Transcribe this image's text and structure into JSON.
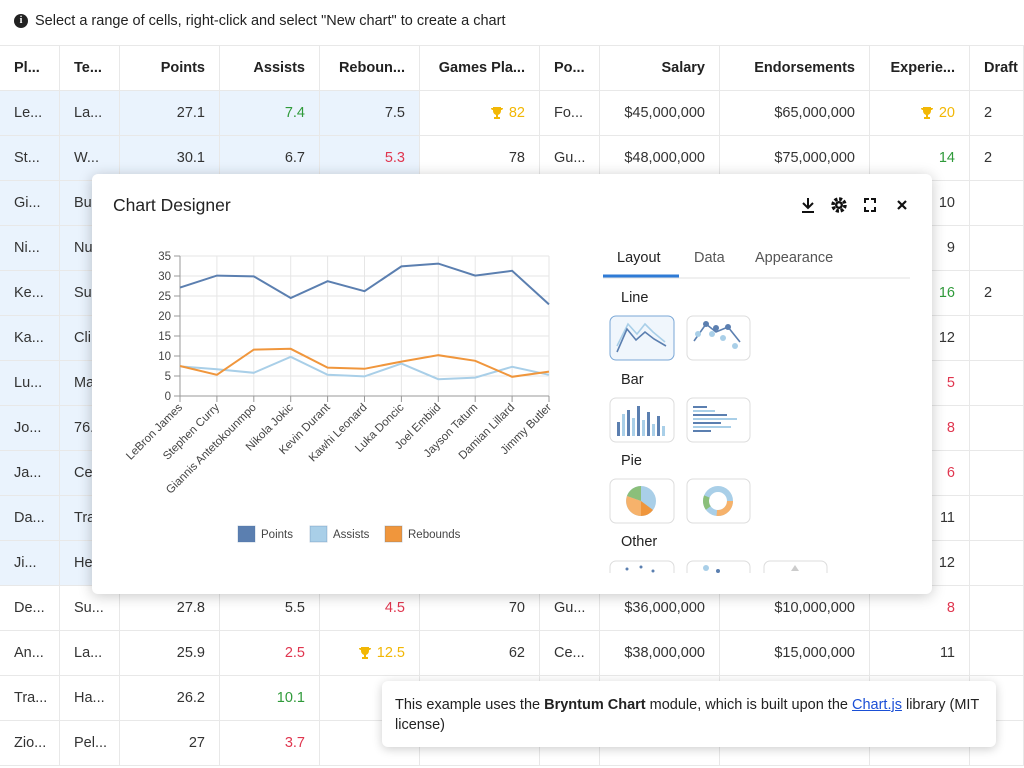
{
  "info_bar": {
    "text": "Select a range of cells, right-click and select \"New chart\" to create a chart"
  },
  "grid": {
    "columns": [
      {
        "title": "Pl...",
        "align": "left"
      },
      {
        "title": "Te...",
        "align": "left"
      },
      {
        "title": "Points",
        "align": "right"
      },
      {
        "title": "Assists",
        "align": "right"
      },
      {
        "title": "Reboun...",
        "align": "right"
      },
      {
        "title": "Games Pla...",
        "align": "right"
      },
      {
        "title": "Po...",
        "align": "left"
      },
      {
        "title": "Salary",
        "align": "right"
      },
      {
        "title": "Endorsements",
        "align": "right"
      },
      {
        "title": "Experie...",
        "align": "right"
      },
      {
        "title": "Draft",
        "align": "left"
      }
    ],
    "rows": [
      [
        "Le...",
        "La...",
        "27.1",
        {
          "text": "7.4",
          "color": "green"
        },
        "7.5",
        {
          "text": "82",
          "color": "gold",
          "icon": "trophy"
        },
        "Fo...",
        "$45,000,000",
        "$65,000,000",
        {
          "text": "20",
          "color": "gold",
          "icon": "trophy"
        },
        "2"
      ],
      [
        "St...",
        "W...",
        "30.1",
        "6.7",
        {
          "text": "5.3",
          "color": "red"
        },
        "78",
        "Gu...",
        "$48,000,000",
        "$75,000,000",
        {
          "text": "14",
          "color": "green"
        },
        "2"
      ],
      [
        "Gi...",
        "Bu...",
        null,
        null,
        null,
        null,
        null,
        null,
        null,
        "10",
        null
      ],
      [
        "Ni...",
        "Nu...",
        null,
        null,
        null,
        null,
        null,
        null,
        null,
        "9",
        null
      ],
      [
        "Ke...",
        "Su...",
        null,
        null,
        null,
        null,
        null,
        null,
        null,
        {
          "text": "16",
          "color": "green"
        },
        "2"
      ],
      [
        "Ka...",
        "Cli...",
        null,
        null,
        null,
        null,
        null,
        null,
        null,
        "12",
        null
      ],
      [
        "Lu...",
        "Ma...",
        null,
        null,
        null,
        null,
        null,
        null,
        null,
        {
          "text": "5",
          "color": "red"
        },
        null
      ],
      [
        "Jo...",
        "76...",
        null,
        null,
        null,
        null,
        null,
        null,
        null,
        {
          "text": "8",
          "color": "red"
        },
        null
      ],
      [
        "Ja...",
        "Ce...",
        null,
        null,
        null,
        null,
        null,
        null,
        null,
        {
          "text": "6",
          "color": "red"
        },
        null
      ],
      [
        "Da...",
        "Tra...",
        null,
        null,
        null,
        null,
        null,
        null,
        null,
        "11",
        null
      ],
      [
        "Ji...",
        "He...",
        null,
        null,
        null,
        null,
        null,
        null,
        null,
        "12",
        null
      ],
      [
        "De...",
        "Su...",
        "27.8",
        "5.5",
        {
          "text": "4.5",
          "color": "red"
        },
        "70",
        "Gu...",
        "$36,000,000",
        "$10,000,000",
        {
          "text": "8",
          "color": "red"
        },
        null
      ],
      [
        "An...",
        "La...",
        "25.9",
        {
          "text": "2.5",
          "color": "red"
        },
        {
          "text": "12.5",
          "color": "gold",
          "icon": "trophy"
        },
        "62",
        "Ce...",
        "$38,000,000",
        "$15,000,000",
        "11",
        null
      ],
      [
        "Tra...",
        "Ha...",
        "26.2",
        {
          "text": "10.1",
          "color": "green"
        },
        null,
        null,
        null,
        null,
        null,
        null,
        null
      ],
      [
        "Zio...",
        "Pel...",
        "27",
        {
          "text": "3.7",
          "color": "red"
        },
        null,
        null,
        null,
        null,
        null,
        null,
        null
      ]
    ]
  },
  "dialog": {
    "title": "Chart Designer",
    "chart_data": {
      "type": "line",
      "categories": [
        "LeBron James",
        "Stephen Curry",
        "Giannis Antetokounmpo",
        "Nikola Jokic",
        "Kevin Durant",
        "Kawhi Leonard",
        "Luka Doncic",
        "Joel Embiid",
        "Jayson Tatum",
        "Damian Lillard",
        "Jimmy Butler"
      ],
      "series": [
        {
          "name": "Points",
          "color": "#5b7fb0",
          "values": [
            27.1,
            30.1,
            29.9,
            24.5,
            28.7,
            26.2,
            32.4,
            33.1,
            30.1,
            31.3,
            22.9
          ]
        },
        {
          "name": "Assists",
          "color": "#a9cfe8",
          "values": [
            7.4,
            6.7,
            5.8,
            9.8,
            5.3,
            4.9,
            8.1,
            4.2,
            4.6,
            7.3,
            5.3
          ]
        },
        {
          "name": "Rebounds",
          "color": "#f0963c",
          "values": [
            7.5,
            5.3,
            11.6,
            11.8,
            7.1,
            6.8,
            8.6,
            10.2,
            8.8,
            4.8,
            6.1
          ]
        }
      ],
      "ylim": [
        0,
        35
      ],
      "yticks": [
        0,
        5,
        10,
        15,
        20,
        25,
        30,
        35
      ],
      "grid": true,
      "legend": "bottom"
    },
    "tabs": [
      "Layout",
      "Data",
      "Appearance"
    ],
    "sections": [
      "Line",
      "Bar",
      "Pie",
      "Other"
    ]
  },
  "tooltip": {
    "text_before": "This example uses the",
    "bold": "Bryntum Chart",
    "text_middle": "module, which is built upon the",
    "link": "Chart.js",
    "text_after": "library (MIT license)"
  }
}
